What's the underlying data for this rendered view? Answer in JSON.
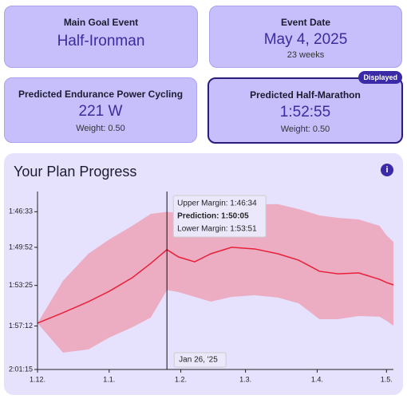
{
  "cards": [
    {
      "title": "Main Goal Event",
      "value": "Half-Ironman"
    },
    {
      "title": "Event Date",
      "value": "May 4, 2025",
      "sub": "23 weeks"
    },
    {
      "title": "Predicted Endurance Power Cycling",
      "value": "221 W",
      "sub": "Weight: 0.50"
    },
    {
      "title": "Predicted Half-Marathon",
      "value": "1:52:55",
      "sub": "Weight: 0.50",
      "badge": "Displayed"
    }
  ],
  "panel": {
    "title": "Your Plan Progress",
    "icon": "i"
  },
  "chart_data": {
    "type": "band-line",
    "x": [
      0,
      11,
      22,
      31,
      41,
      49,
      56,
      61,
      68,
      75,
      84,
      94,
      104,
      113,
      122,
      130,
      139,
      148,
      151,
      154
    ],
    "series": [
      {
        "name": "Prediction",
        "color": "#e8203a",
        "values": [
          7016,
          6958,
          6896,
          6838,
          6762,
          6682,
          6605,
          6646,
          6673,
          6628,
          6592,
          6601,
          6628,
          6664,
          6726,
          6740,
          6735,
          6771,
          6789,
          6802
        ]
      },
      {
        "name": "Upper Margin",
        "color": "#eca3b8",
        "values": [
          7016,
          6780,
          6628,
          6548,
          6472,
          6405,
          6394,
          6400,
          6405,
          6387,
          6369,
          6351,
          6351,
          6378,
          6414,
          6427,
          6436,
          6472,
          6525,
          6561
        ]
      },
      {
        "name": "Lower Margin",
        "color": "#eca3b8",
        "values": [
          7016,
          7181,
          7163,
          7097,
          7039,
          6985,
          6831,
          6842,
          6869,
          6896,
          6869,
          6860,
          6873,
          6905,
          6994,
          6994,
          6976,
          6980,
          7003,
          7030
        ]
      }
    ],
    "xlim": [
      0,
      154
    ],
    "xticks": [
      {
        "value": 0,
        "label": "1.12."
      },
      {
        "value": 31,
        "label": "1.1."
      },
      {
        "value": 62,
        "label": "1.2."
      },
      {
        "value": 90,
        "label": "1.3."
      },
      {
        "value": 121,
        "label": "1.4."
      },
      {
        "value": 151,
        "label": "1.5."
      }
    ],
    "ylim": [
      6280,
      7275
    ],
    "y_reversed": true,
    "yticks": [
      {
        "value": 6393,
        "label": "1:46:33"
      },
      {
        "value": 6592,
        "label": "1:49:52"
      },
      {
        "value": 6805,
        "label": "1:53:25"
      },
      {
        "value": 7032,
        "label": "1:57:12"
      },
      {
        "value": 7275,
        "label": "2:01:15"
      }
    ],
    "tooltip": {
      "x": 56,
      "date": "Jan 26, '25",
      "lines": [
        "Upper Margin: 1:46:34",
        "Prediction: 1:50:05",
        "Lower Margin: 1:53:51"
      ],
      "bold": 1
    }
  }
}
